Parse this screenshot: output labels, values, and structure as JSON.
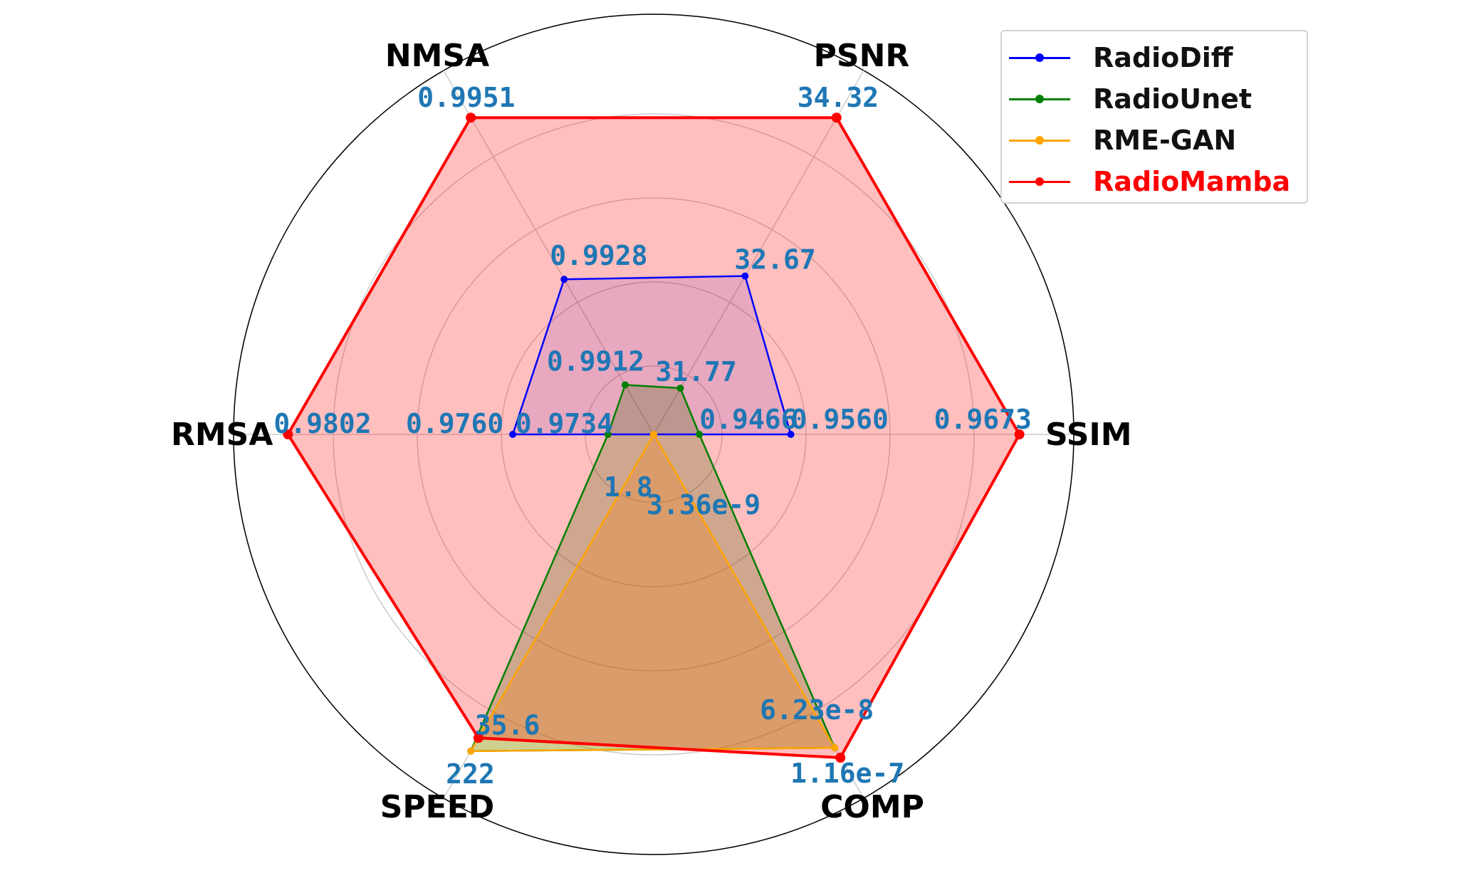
{
  "chart_data": {
    "type": "radar",
    "axes": [
      "SSIM",
      "PSNR",
      "NMSA",
      "RMSA",
      "SPEED",
      "COMP"
    ],
    "grid": true,
    "legend_position": "top-right",
    "series": [
      {
        "name": "RadioDiff",
        "color": "#0000ff",
        "fill": false,
        "values_normalized": [
          0.36,
          0.48,
          0.47,
          0.37,
          0.0,
          0.0
        ],
        "labels": {
          "SSIM": "0.9560",
          "PSNR": "32.67",
          "NMSA": "0.9928",
          "RMSA": "0.9760"
        }
      },
      {
        "name": "RadioUnet",
        "color": "#008000",
        "fill": true,
        "values_normalized": [
          0.12,
          0.14,
          0.15,
          0.12,
          0.96,
          0.95
        ],
        "labels": {
          "SSIM": "0.9466",
          "PSNR": "31.77",
          "NMSA": "0.9912",
          "RMSA": "0.9734",
          "SPEED": "222",
          "COMP": "6.23e-8"
        }
      },
      {
        "name": "RME-GAN",
        "color": "#ffa500",
        "fill": true,
        "values_normalized": [
          0.0,
          0.0,
          0.0,
          0.0,
          0.96,
          0.95
        ],
        "labels": {
          "SPEED": "1.8",
          "COMP": "3.36e-9"
        }
      },
      {
        "name": "RadioMamba",
        "color": "#ff0000",
        "fill": true,
        "legend_text_color": "#ff0000",
        "values_normalized": [
          0.96,
          0.96,
          0.96,
          0.96,
          0.92,
          0.98
        ],
        "labels": {
          "SSIM": "0.9673",
          "PSNR": "34.32",
          "NMSA": "0.9951",
          "RMSA": "0.9802",
          "SPEED": "35.6",
          "COMP": "1.16e-7"
        }
      }
    ],
    "value_label_color": "#1f77b4"
  },
  "legend": {
    "items": [
      {
        "label": "RadioDiff"
      },
      {
        "label": "RadioUnet"
      },
      {
        "label": "RME-GAN"
      },
      {
        "label": "RadioMamba"
      }
    ]
  }
}
